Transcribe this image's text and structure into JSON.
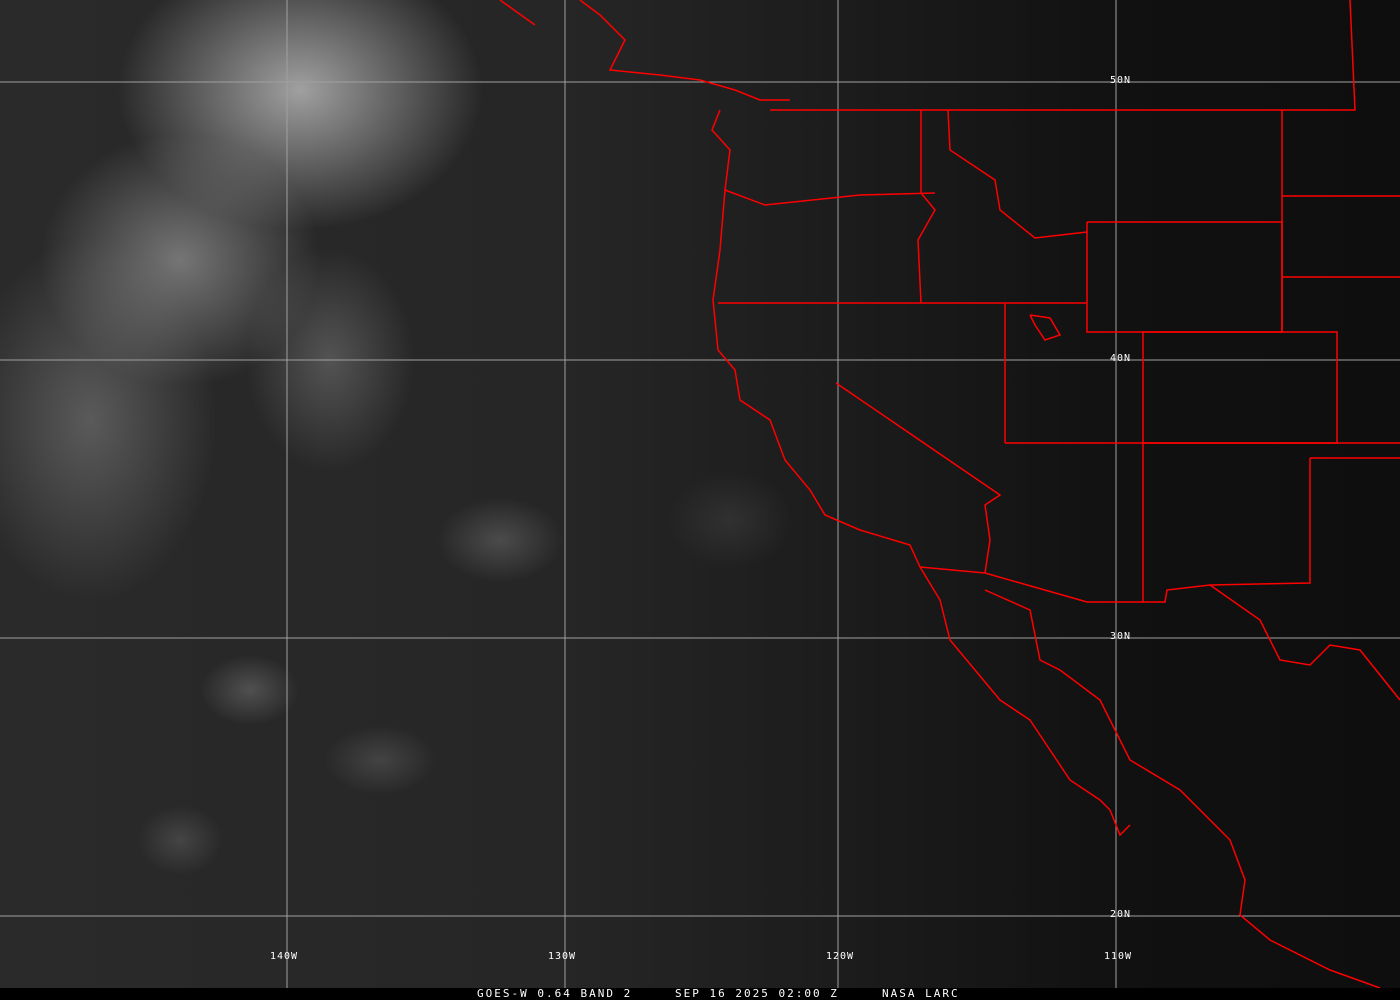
{
  "colors": {
    "boundaries": "#ff0000",
    "grid": "#a0a0a0"
  },
  "grid": {
    "longitudes": [
      "140W",
      "130W",
      "120W",
      "110W"
    ],
    "latitudes": [
      "50N",
      "40N",
      "30N",
      "20N"
    ]
  },
  "caption": {
    "product": "GOES-W 0.64 BAND 2",
    "datetime": "SEP 16 2025 02:00 Z",
    "credit": "NASA LARC"
  }
}
